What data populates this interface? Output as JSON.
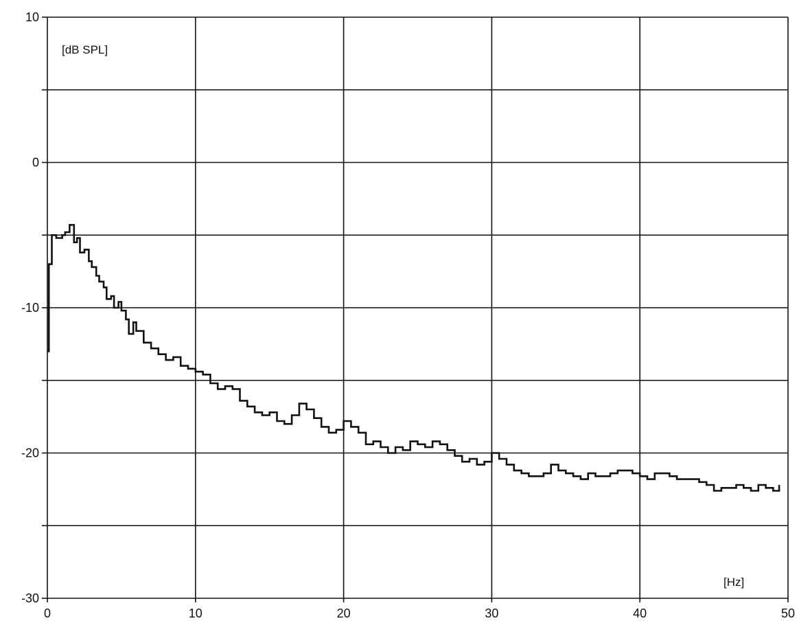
{
  "colors": {
    "background": "#ffffff",
    "ink": "#111111"
  },
  "chart_data": {
    "type": "line",
    "title": "",
    "xlabel": "[Hz]",
    "ylabel": "[dB SPL]",
    "xlim": [
      0,
      50
    ],
    "ylim": [
      -30,
      10
    ],
    "x_ticks": [
      0,
      10,
      20,
      30,
      40,
      50
    ],
    "y_ticks": [
      10,
      0,
      -10,
      -20,
      -30
    ],
    "y_gridlines": [
      10,
      5,
      0,
      -5,
      -10,
      -15,
      -20,
      -25,
      -30
    ],
    "x_gridlines": [
      0,
      10,
      20,
      30,
      40,
      50
    ],
    "grid": true,
    "step": true,
    "series": [
      {
        "x": [
          0.0,
          0.1,
          0.3,
          0.6,
          1.0,
          1.2,
          1.5,
          1.8,
          2.0,
          2.2,
          2.5,
          2.8,
          3.0,
          3.3,
          3.5,
          3.8,
          4.0,
          4.3,
          4.5,
          4.8,
          5.0,
          5.3,
          5.5,
          5.8,
          6.0,
          6.5,
          7.0,
          7.5,
          8.0,
          8.5,
          9.0,
          9.5,
          10.0,
          10.5,
          11.0,
          11.5,
          12.0,
          12.5,
          13.0,
          13.5,
          14.0,
          14.5,
          15.0,
          15.5,
          16.0,
          16.5,
          17.0,
          17.5,
          18.0,
          18.5,
          19.0,
          19.5,
          20.0,
          20.5,
          21.0,
          21.5,
          22.0,
          22.5,
          23.0,
          23.5,
          24.0,
          24.5,
          25.0,
          25.5,
          26.0,
          26.5,
          27.0,
          27.5,
          28.0,
          28.5,
          29.0,
          29.5,
          30.0,
          30.5,
          31.0,
          31.5,
          32.0,
          32.5,
          33.0,
          33.5,
          34.0,
          34.5,
          35.0,
          35.5,
          36.0,
          36.5,
          37.0,
          37.5,
          38.0,
          38.5,
          39.0,
          39.5,
          40.0,
          40.5,
          41.0,
          41.5,
          42.0,
          42.5,
          43.0,
          43.5,
          44.0,
          44.5,
          45.0,
          45.5,
          46.0,
          46.5,
          47.0,
          47.5,
          48.0,
          48.5,
          49.0,
          49.4
        ],
        "values": [
          -13,
          -7,
          -5,
          -5.2,
          -5,
          -4.8,
          -4.3,
          -5.5,
          -5.2,
          -6.2,
          -6,
          -6.8,
          -7.2,
          -7.8,
          -8.2,
          -8.6,
          -9.4,
          -9.2,
          -10,
          -9.6,
          -10.2,
          -10.8,
          -11.8,
          -11,
          -11.6,
          -12.4,
          -12.8,
          -13.2,
          -13.6,
          -13.4,
          -14,
          -14.2,
          -14.4,
          -14.6,
          -15.2,
          -15.6,
          -15.4,
          -15.6,
          -16.4,
          -16.8,
          -17.2,
          -17.4,
          -17.2,
          -17.8,
          -18,
          -17.4,
          -16.6,
          -17,
          -17.6,
          -18.2,
          -18.6,
          -18.4,
          -17.8,
          -18.2,
          -18.6,
          -19.4,
          -19.2,
          -19.6,
          -20,
          -19.6,
          -19.8,
          -19.2,
          -19.4,
          -19.6,
          -19.2,
          -19.4,
          -19.8,
          -20.2,
          -20.6,
          -20.4,
          -20.8,
          -20.6,
          -20,
          -20.4,
          -20.8,
          -21.2,
          -21.4,
          -21.6,
          -21.6,
          -21.4,
          -20.8,
          -21.2,
          -21.4,
          -21.6,
          -21.8,
          -21.4,
          -21.6,
          -21.6,
          -21.4,
          -21.2,
          -21.2,
          -21.4,
          -21.6,
          -21.8,
          -21.4,
          -21.4,
          -21.6,
          -21.8,
          -21.8,
          -21.8,
          -22.0,
          -22.2,
          -22.6,
          -22.4,
          -22.4,
          -22.2,
          -22.4,
          -22.6,
          -22.2,
          -22.4,
          -22.6,
          -22.2
        ]
      }
    ]
  }
}
